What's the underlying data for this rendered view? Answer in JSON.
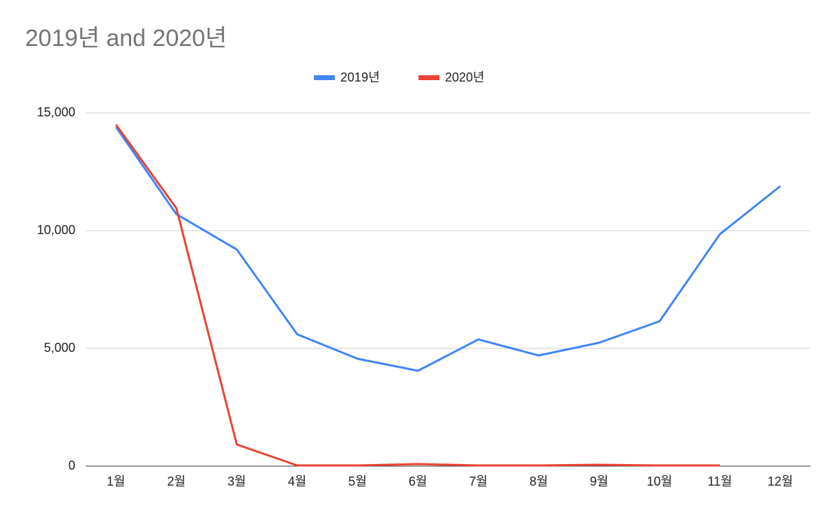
{
  "chart_data": {
    "type": "line",
    "title": "2019년 and 2020년",
    "categories": [
      "1월",
      "2월",
      "3월",
      "4월",
      "5월",
      "6월",
      "7월",
      "8월",
      "9월",
      "10월",
      "11월",
      "12월"
    ],
    "series": [
      {
        "name": "2019년",
        "color": "#4285f4",
        "values": [
          14400,
          10700,
          9200,
          5600,
          4560,
          4050,
          5380,
          4700,
          5240,
          6150,
          9850,
          11890
        ]
      },
      {
        "name": "2020년",
        "color": "#ea4335",
        "values": [
          14500,
          10950,
          920,
          30,
          30,
          90,
          30,
          30,
          60,
          30,
          30,
          null
        ]
      }
    ],
    "ylim": [
      0,
      15000
    ],
    "yticks": [
      0,
      {
        "value": 5000,
        "label": "5,000"
      },
      {
        "value": 10000,
        "label": "10,000"
      },
      {
        "value": 15000,
        "label": "15,000"
      }
    ],
    "grid": true,
    "legend": "top"
  }
}
